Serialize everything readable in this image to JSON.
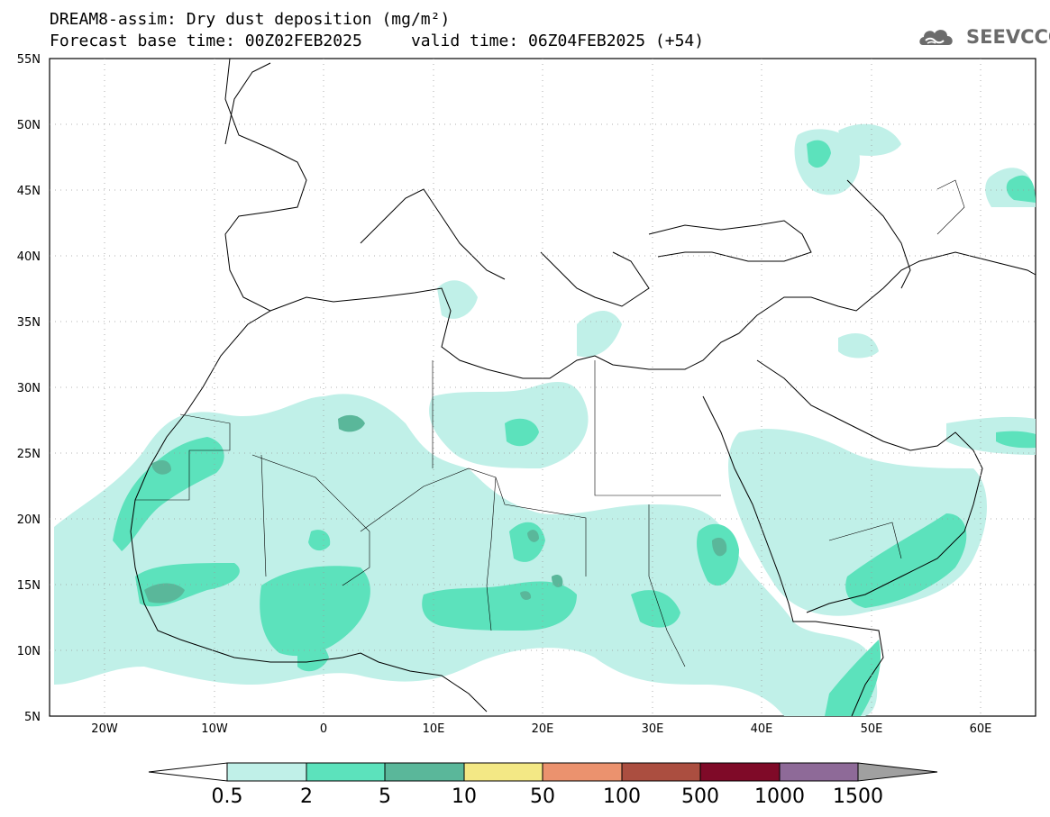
{
  "header": {
    "title_line1": "DREAM8-assim: Dry dust deposition (mg/m²)",
    "title_line2": "Forecast base time: 00Z02FEB2025     valid time: 06Z04FEB2025 (+54)",
    "logo_text": "SEEVCCC",
    "logo_icon": "cloud-logo-icon"
  },
  "map": {
    "lon_range": [
      -25,
      65
    ],
    "lat_range": [
      5,
      55
    ],
    "lat_labels": [
      "5N",
      "10N",
      "15N",
      "20N",
      "25N",
      "30N",
      "35N",
      "40N",
      "45N",
      "50N",
      "55N"
    ],
    "lon_labels": [
      "20W",
      "10W",
      "0",
      "10E",
      "20E",
      "30E",
      "40E",
      "50E",
      "60E"
    ],
    "grid": "dotted"
  },
  "colorbar": {
    "labels": [
      "0.5",
      "2",
      "5",
      "10",
      "50",
      "100",
      "500",
      "1000",
      "1500"
    ],
    "colors": [
      "#c0f0e8",
      "#5ce2bc",
      "#5ab79a",
      "#f3e885",
      "#eb926e",
      "#ab4e40",
      "#7f0a28",
      "#8e6a98"
    ],
    "under_color": "#ffffff",
    "over_color": "#a0a0a0"
  }
}
